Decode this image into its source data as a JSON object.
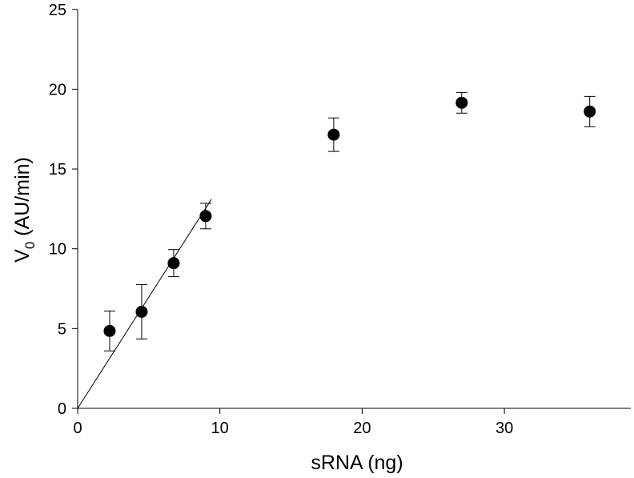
{
  "chart_data": {
    "type": "scatter",
    "title": "",
    "xlabel": "sRNA (ng)",
    "ylabel_main": "V",
    "ylabel_sub": "0",
    "ylabel_rest": " (AU/min)",
    "xlim": [
      0,
      39
    ],
    "ylim": [
      0,
      25
    ],
    "xticks": [
      0,
      10,
      20,
      30
    ],
    "yticks": [
      0,
      5,
      10,
      15,
      20,
      25
    ],
    "grid": false,
    "legend": "none",
    "points": [
      {
        "x": 2.25,
        "y": 4.85,
        "err": 1.25
      },
      {
        "x": 4.5,
        "y": 6.05,
        "err": 1.7
      },
      {
        "x": 6.75,
        "y": 9.1,
        "err": 0.85
      },
      {
        "x": 9.0,
        "y": 12.05,
        "err": 0.8
      },
      {
        "x": 18.0,
        "y": 17.15,
        "err": 1.05
      },
      {
        "x": 27.0,
        "y": 19.15,
        "err": 0.65
      },
      {
        "x": 36.0,
        "y": 18.6,
        "err": 0.95
      }
    ],
    "fit_line": {
      "x": [
        0,
        9.4
      ],
      "y": [
        0,
        13.1
      ]
    },
    "marker_color": "#000000"
  }
}
